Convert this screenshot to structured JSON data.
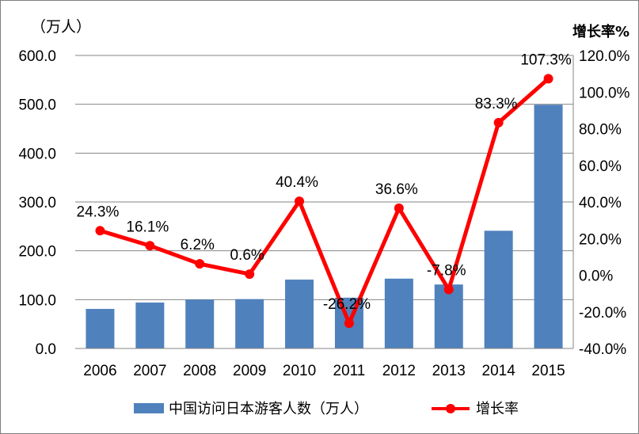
{
  "chart_data": {
    "type": "bar+line",
    "categories": [
      "2006",
      "2007",
      "2008",
      "2009",
      "2010",
      "2011",
      "2012",
      "2013",
      "2014",
      "2015"
    ],
    "series": [
      {
        "name": "中国访问日本游客人数（万人）",
        "type": "bar",
        "axis": "left",
        "color": "#4f81bd",
        "values": [
          81,
          94,
          100,
          101,
          141,
          104,
          143,
          131,
          241,
          499
        ]
      },
      {
        "name": "增长率",
        "type": "line",
        "axis": "right",
        "color": "#ff0000",
        "values": [
          24.3,
          16.1,
          6.2,
          0.6,
          40.4,
          -26.2,
          36.6,
          -7.8,
          83.3,
          107.3
        ],
        "labels": [
          "24.3%",
          "16.1%",
          "6.2%",
          "0.6%",
          "40.4%",
          "-26.2%",
          "36.6%",
          "-7.8%",
          "83.3%",
          "107.3%"
        ]
      }
    ],
    "y_left": {
      "unit_label": "（万人）",
      "range": [
        0,
        600
      ],
      "ticks": [
        "0.0",
        "100.0",
        "200.0",
        "300.0",
        "400.0",
        "500.0",
        "600.0"
      ]
    },
    "y_right": {
      "unit_label": "增长率%",
      "range": [
        -40,
        120
      ],
      "ticks": [
        "-40.0%",
        "-20.0%",
        "0.0%",
        "20.0%",
        "40.0%",
        "60.0%",
        "80.0%",
        "100.0%",
        "120.0%"
      ]
    },
    "grid": "horizontal",
    "legend_position": "bottom"
  }
}
